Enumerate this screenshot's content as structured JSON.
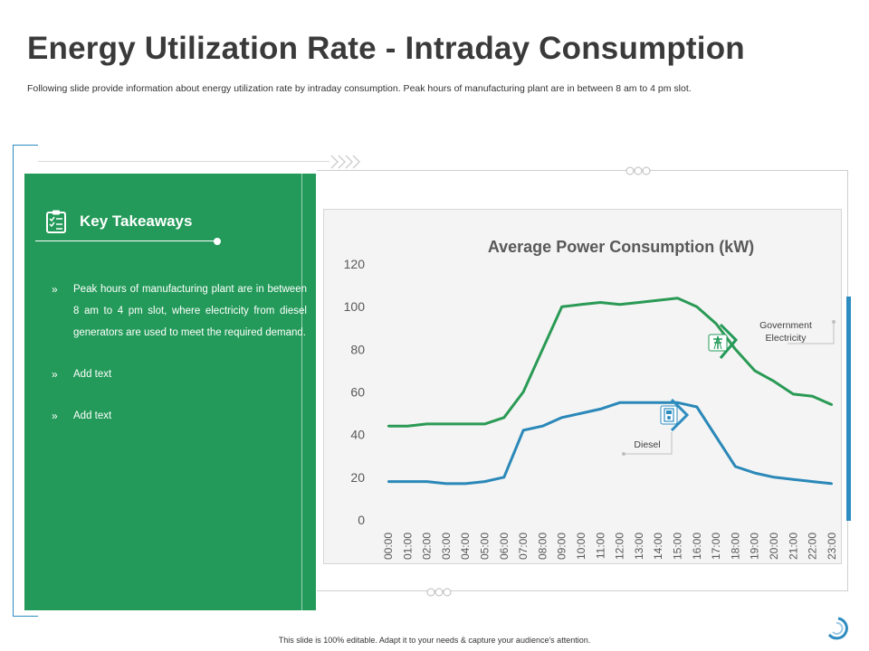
{
  "slide": {
    "title": "Energy Utilization Rate - Intraday Consumption",
    "subtitle": "Following slide provide information about energy utilization rate by intraday consumption. Peak hours of manufacturing  plant are in between 8 am to 4 pm slot.",
    "footer": "This slide is 100% editable.  Adapt it to your needs & capture your audience's attention."
  },
  "takeaways": {
    "title": "Key Takeaways",
    "bullet_mark": "»",
    "items": [
      "Peak hours of manufacturing   plant are in between 8 am to 4 pm slot, where electricity from diesel generators are used to meet the required demand.",
      "Add text",
      "Add text"
    ]
  },
  "colors": {
    "green": "#239a59",
    "blue": "#2d8cc0",
    "gov_line": "#2a9a55",
    "diesel_line": "#2a88b8"
  },
  "chart_data": {
    "type": "line",
    "title": "Average Power Consumption (kW)",
    "xlabel": "",
    "ylabel": "",
    "ylim": [
      0,
      120
    ],
    "yticks": [
      0,
      20,
      40,
      60,
      80,
      100,
      120
    ],
    "categories": [
      "00:00",
      "01:00",
      "02:00",
      "03:00",
      "04:00",
      "05:00",
      "06:00",
      "07:00",
      "08:00",
      "09:00",
      "10:00",
      "11:00",
      "12:00",
      "13:00",
      "14:00",
      "15:00",
      "16:00",
      "17:00",
      "18:00",
      "19:00",
      "20:00",
      "21:00",
      "22:00",
      "23:00"
    ],
    "series": [
      {
        "name": "Government Electricity",
        "label": "Government Electricity",
        "values": [
          44,
          44,
          45,
          45,
          45,
          45,
          48,
          60,
          80,
          100,
          101,
          102,
          101,
          102,
          103,
          104,
          100,
          92,
          80,
          70,
          65,
          59,
          58,
          54
        ]
      },
      {
        "name": "Diesel",
        "label": "Diesel",
        "values": [
          18,
          18,
          18,
          17,
          17,
          18,
          20,
          42,
          44,
          48,
          50,
          52,
          55,
          55,
          55,
          55,
          53,
          39,
          25,
          22,
          20,
          19,
          18,
          17
        ]
      }
    ],
    "annotations": [
      {
        "text": "Government Electricity",
        "series": "Government Electricity"
      },
      {
        "text": "Diesel",
        "series": "Diesel"
      }
    ],
    "grid": false,
    "legend": "none"
  }
}
